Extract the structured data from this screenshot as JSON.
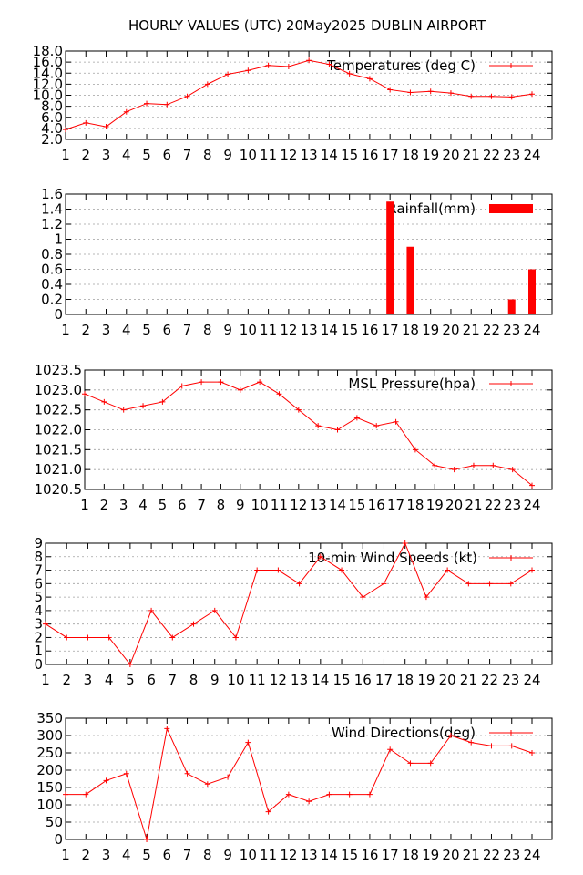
{
  "title": "HOURLY VALUES (UTC) 20May2025  DUBLIN AIRPORT",
  "colors": {
    "series": "#ff0000",
    "axis": "#000000",
    "grid": "#a0a0a0"
  },
  "chart_data": [
    {
      "type": "line",
      "legend": "Temperatures (deg C)",
      "x": [
        1,
        2,
        3,
        4,
        5,
        6,
        7,
        8,
        9,
        10,
        11,
        12,
        13,
        14,
        15,
        16,
        17,
        18,
        19,
        20,
        21,
        22,
        23,
        24
      ],
      "values": [
        3.8,
        5.0,
        4.3,
        7.0,
        8.5,
        8.3,
        9.8,
        12.0,
        13.8,
        14.5,
        15.4,
        15.2,
        16.3,
        15.6,
        13.9,
        13.0,
        11.0,
        10.5,
        10.7,
        10.4,
        9.8,
        9.8,
        9.7,
        10.2
      ],
      "ylim": [
        2.0,
        18.0
      ],
      "yticks": [
        "2.0",
        "4.0",
        "6.0",
        "8.0",
        "10.0",
        "12.0",
        "14.0",
        "16.0",
        "18.0"
      ],
      "xticks": [
        "1",
        "2",
        "3",
        "4",
        "5",
        "6",
        "7",
        "8",
        "9",
        "10",
        "11",
        "12",
        "13",
        "14",
        "15",
        "16",
        "17",
        "18",
        "19",
        "20",
        "21",
        "22",
        "23",
        "24"
      ],
      "grid": true,
      "legend_position": "top-right"
    },
    {
      "type": "bar",
      "legend": "Rainfall(mm)",
      "x": [
        1,
        2,
        3,
        4,
        5,
        6,
        7,
        8,
        9,
        10,
        11,
        12,
        13,
        14,
        15,
        16,
        17,
        18,
        19,
        20,
        21,
        22,
        23,
        24
      ],
      "values": [
        0,
        0,
        0,
        0,
        0,
        0,
        0,
        0,
        0,
        0,
        0,
        0,
        0,
        0,
        0,
        0,
        1.5,
        0.9,
        0,
        0,
        0,
        0,
        0.2,
        0.6
      ],
      "ylim": [
        0,
        1.6
      ],
      "yticks": [
        "0",
        "0.2",
        "0.4",
        "0.6",
        "0.8",
        "1",
        "1.2",
        "1.4",
        "1.6"
      ],
      "xticks": [
        "1",
        "2",
        "3",
        "4",
        "5",
        "6",
        "7",
        "8",
        "9",
        "10",
        "11",
        "12",
        "13",
        "14",
        "15",
        "16",
        "17",
        "18",
        "19",
        "20",
        "21",
        "22",
        "23",
        "24"
      ],
      "grid": true,
      "legend_position": "top-right"
    },
    {
      "type": "line",
      "legend": "MSL Pressure(hpa)",
      "x": [
        1,
        2,
        3,
        4,
        5,
        6,
        7,
        8,
        9,
        10,
        11,
        12,
        13,
        14,
        15,
        16,
        17,
        18,
        19,
        20,
        21,
        22,
        23,
        24
      ],
      "values": [
        1022.9,
        1022.7,
        1022.5,
        1022.6,
        1022.7,
        1023.1,
        1023.2,
        1023.2,
        1023.0,
        1023.2,
        1022.9,
        1022.5,
        1022.1,
        1022.0,
        1022.3,
        1022.1,
        1022.2,
        1021.5,
        1021.1,
        1021.0,
        1021.1,
        1021.1,
        1021.0,
        1020.6
      ],
      "ylim": [
        1020.5,
        1023.5
      ],
      "yticks": [
        "1020.5",
        "1021.0",
        "1021.5",
        "1022.0",
        "1022.5",
        "1023.0",
        "1023.5"
      ],
      "xticks": [
        "1",
        "2",
        "3",
        "4",
        "5",
        "6",
        "7",
        "8",
        "9",
        "10",
        "11",
        "12",
        "13",
        "14",
        "15",
        "16",
        "17",
        "18",
        "19",
        "20",
        "21",
        "22",
        "23",
        "24"
      ],
      "grid": true,
      "legend_position": "top-right"
    },
    {
      "type": "line",
      "legend": "10-min Wind Speeds (kt)",
      "x": [
        1,
        2,
        3,
        4,
        5,
        6,
        7,
        8,
        9,
        10,
        11,
        12,
        13,
        14,
        15,
        16,
        17,
        18,
        19,
        20,
        21,
        22,
        23,
        24
      ],
      "values": [
        3,
        2,
        2,
        2,
        0,
        4,
        2,
        3,
        4,
        2,
        7,
        7,
        6,
        8,
        7,
        5,
        6,
        9,
        5,
        7,
        6,
        6,
        6,
        7
      ],
      "ylim": [
        0,
        9
      ],
      "yticks": [
        "0",
        "1",
        "2",
        "3",
        "4",
        "5",
        "6",
        "7",
        "8",
        "9"
      ],
      "xticks": [
        "1",
        "2",
        "3",
        "4",
        "5",
        "6",
        "7",
        "8",
        "9",
        "10",
        "11",
        "12",
        "13",
        "14",
        "15",
        "16",
        "17",
        "18",
        "19",
        "20",
        "21",
        "22",
        "23",
        "24"
      ],
      "grid": true,
      "legend_position": "top-right"
    },
    {
      "type": "line",
      "legend": "Wind Directions(deg)",
      "x": [
        1,
        2,
        3,
        4,
        5,
        6,
        7,
        8,
        9,
        10,
        11,
        12,
        13,
        14,
        15,
        16,
        17,
        18,
        19,
        20,
        21,
        22,
        23,
        24
      ],
      "values": [
        130,
        130,
        170,
        190,
        0,
        320,
        190,
        160,
        180,
        280,
        80,
        130,
        110,
        130,
        130,
        130,
        260,
        220,
        220,
        300,
        280,
        270,
        270,
        250
      ],
      "ylim": [
        0,
        350
      ],
      "yticks": [
        "0",
        "50",
        "100",
        "150",
        "200",
        "250",
        "300",
        "350"
      ],
      "xticks": [
        "1",
        "2",
        "3",
        "4",
        "5",
        "6",
        "7",
        "8",
        "9",
        "10",
        "11",
        "12",
        "13",
        "14",
        "15",
        "16",
        "17",
        "18",
        "19",
        "20",
        "21",
        "22",
        "23",
        "24"
      ],
      "grid": true,
      "legend_position": "top-right"
    }
  ]
}
